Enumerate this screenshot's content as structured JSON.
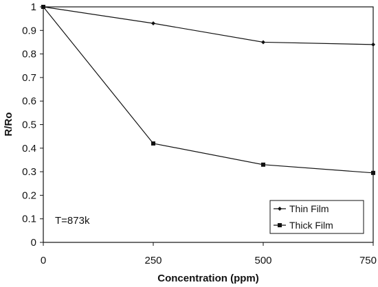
{
  "chart_data": {
    "type": "line",
    "x": [
      0,
      250,
      500,
      750
    ],
    "xlabel": "Concentration (ppm)",
    "ylabel": "R/Ro",
    "xlim": [
      0,
      750
    ],
    "ylim": [
      0,
      1
    ],
    "xticks": [
      "0",
      "250",
      "500",
      "750"
    ],
    "yticks": [
      "0",
      "0.1",
      "0.2",
      "0.3",
      "0.4",
      "0.5",
      "0.6",
      "0.7",
      "0.8",
      "0.9",
      "1"
    ],
    "series": [
      {
        "name": "Thin Film",
        "values": [
          1.0,
          0.93,
          0.85,
          0.84
        ],
        "marker": "diamond",
        "color": "#111111"
      },
      {
        "name": "Thick Film",
        "values": [
          1.0,
          0.42,
          0.33,
          0.295
        ],
        "marker": "square",
        "color": "#111111"
      }
    ],
    "annotation": "T=873k",
    "legend_position": "bottom-right",
    "grid": false
  }
}
